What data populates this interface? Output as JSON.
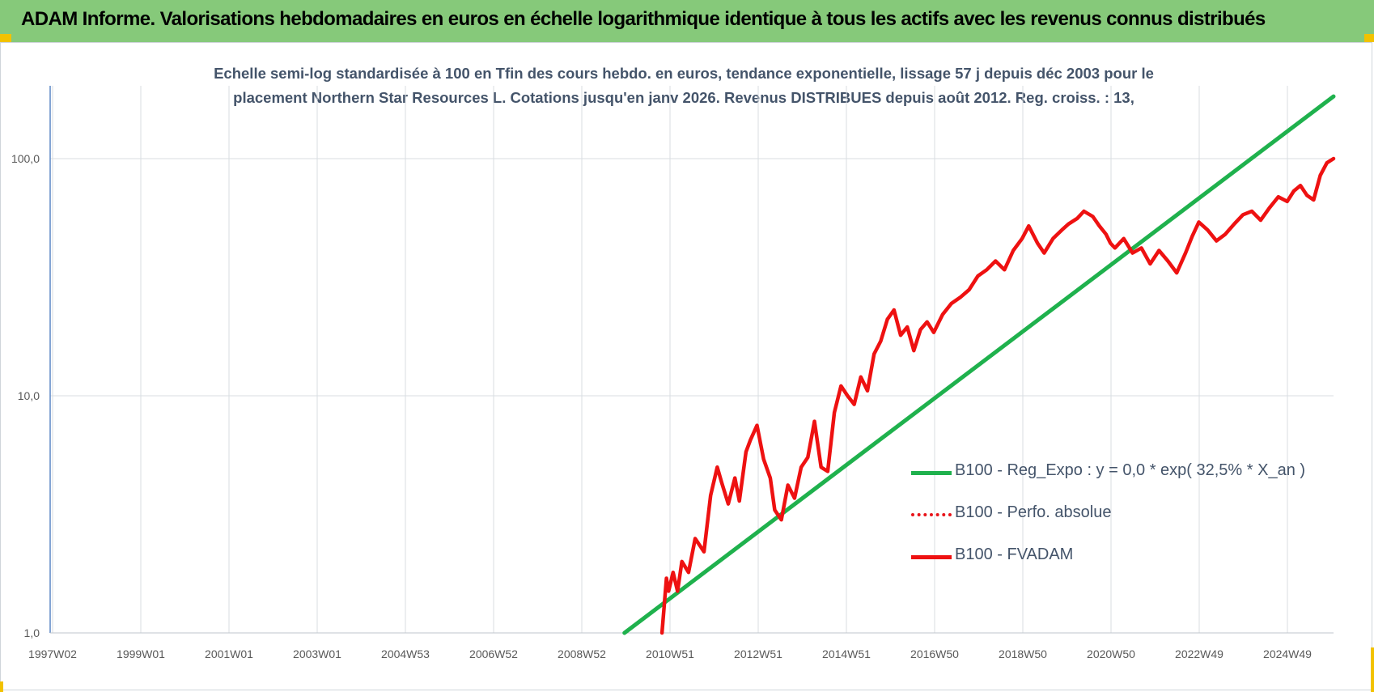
{
  "header": {
    "title": "ADAM Informe. Valorisations hebdomadaires en euros en échelle logarithmique identique à tous les actifs avec les revenus connus distribués"
  },
  "chart_data": {
    "type": "line",
    "title_line1": "Echelle semi-log standardisée à 100 en Tfin des cours hebdo. en euros, tendance exponentielle, lissage 57 j depuis déc 2003 pour le",
    "title_line2": "placement Northern Star Resources L. Cotations jusqu'en janv 2026. Revenus DISTRIBUES depuis août 2012. Reg. croiss. : 13,",
    "y_scale": "log",
    "ylim": [
      1,
      200
    ],
    "y_ticks": [
      "100,0",
      "10,0",
      "1,0"
    ],
    "x_ticks": [
      "1997W02",
      "1999W01",
      "2001W01",
      "2003W01",
      "2004W53",
      "2006W52",
      "2008W52",
      "2010W51",
      "2012W51",
      "2014W51",
      "2016W50",
      "2018W50",
      "2020W50",
      "2022W49",
      "2024W49"
    ],
    "xlim": [
      1997.0,
      2026.05
    ],
    "grid": true,
    "legend_position": "bottom-right",
    "colors": {
      "reg": "#1fb14d",
      "perf": "#e8141a",
      "fvadam": "#ee1111",
      "axis": "#5b87c5",
      "grid": "#d9dde2"
    },
    "series": [
      {
        "name": "B100 - Reg_Expo : y = 0,0 * exp( 32,5% *  X_an )",
        "style": "solid",
        "x": [
          2010.0,
          2026.05
        ],
        "y": [
          1.0,
          183
        ]
      },
      {
        "name": "B100 - Perfo. absolue",
        "style": "dotted",
        "x": [],
        "y": []
      },
      {
        "name": "B100 - FVADAM",
        "style": "solid",
        "x": [
          2010.85,
          2010.95,
          2011.0,
          2011.1,
          2011.2,
          2011.3,
          2011.45,
          2011.6,
          2011.8,
          2011.95,
          2012.1,
          2012.2,
          2012.35,
          2012.5,
          2012.6,
          2012.75,
          2012.85,
          2013.0,
          2013.15,
          2013.3,
          2013.4,
          2013.55,
          2013.7,
          2013.85,
          2014.0,
          2014.15,
          2014.3,
          2014.45,
          2014.6,
          2014.75,
          2014.9,
          2015.05,
          2015.2,
          2015.35,
          2015.5,
          2015.65,
          2015.8,
          2015.95,
          2016.1,
          2016.25,
          2016.4,
          2016.55,
          2016.7,
          2016.85,
          2017.0,
          2017.2,
          2017.4,
          2017.6,
          2017.8,
          2018.0,
          2018.2,
          2018.4,
          2018.6,
          2018.8,
          2019.0,
          2019.15,
          2019.35,
          2019.5,
          2019.7,
          2019.9,
          2020.05,
          2020.25,
          2020.4,
          2020.6,
          2020.75,
          2020.9,
          2021.0,
          2021.1,
          2021.3,
          2021.5,
          2021.7,
          2021.9,
          2022.1,
          2022.3,
          2022.5,
          2022.7,
          2022.85,
          2023.0,
          2023.2,
          2023.4,
          2023.6,
          2023.8,
          2024.0,
          2024.2,
          2024.4,
          2024.6,
          2024.8,
          2025.0,
          2025.15,
          2025.3,
          2025.45,
          2025.6,
          2025.75,
          2025.9,
          2026.05
        ],
        "y": [
          1.0,
          1.7,
          1.5,
          1.8,
          1.5,
          2.0,
          1.8,
          2.5,
          2.2,
          3.8,
          5.0,
          4.3,
          3.5,
          4.5,
          3.6,
          5.8,
          6.5,
          7.5,
          5.4,
          4.5,
          3.3,
          3.0,
          4.2,
          3.7,
          5.0,
          5.5,
          7.8,
          5.0,
          4.8,
          8.5,
          11.0,
          10.0,
          9.2,
          12.0,
          10.5,
          15.0,
          17.0,
          21.0,
          23.0,
          18.0,
          19.5,
          15.5,
          19.0,
          20.5,
          18.5,
          22.0,
          24.5,
          26.0,
          28.0,
          32.0,
          34.0,
          37.0,
          34.0,
          41.0,
          46.0,
          52.0,
          44.0,
          40.0,
          46.0,
          50.0,
          53.0,
          56.0,
          60.0,
          57.0,
          52.0,
          48.0,
          44.0,
          42.0,
          46.0,
          40.0,
          42.0,
          36.0,
          41.0,
          37.0,
          33.0,
          40.0,
          47.0,
          54.0,
          50.0,
          45.0,
          48.0,
          53.0,
          58.0,
          60.0,
          55.0,
          62.0,
          69.0,
          66.0,
          73.0,
          77.0,
          70.0,
          67.0,
          85.0,
          96.0,
          100.0
        ]
      }
    ]
  }
}
